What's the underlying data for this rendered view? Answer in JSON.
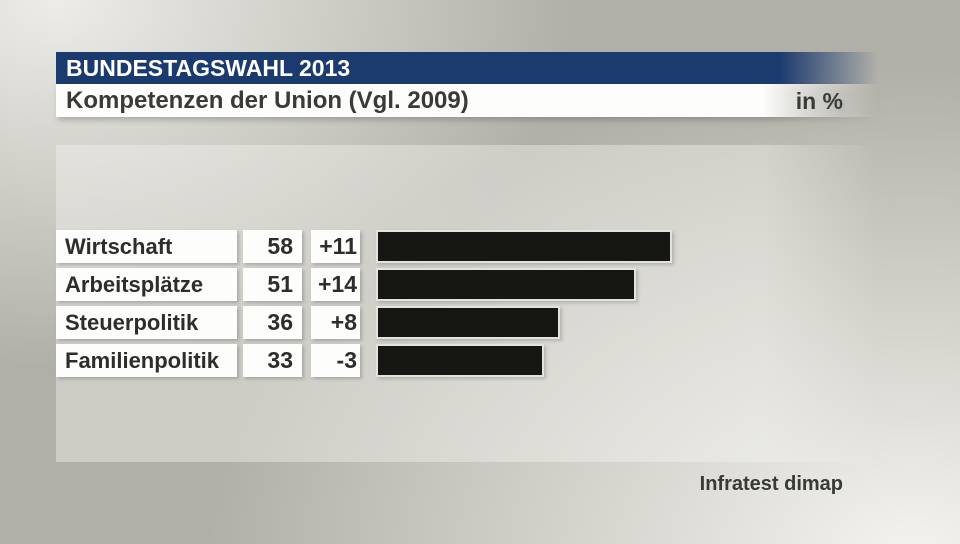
{
  "header": {
    "kicker": "BUNDESTAGSWAHL 2013",
    "title": "Kompetenzen der Union (Vgl. 2009)",
    "unit_label": "in %"
  },
  "source": "Infratest dimap",
  "colors": {
    "header_blue": "#1b3a6e",
    "bar_fill": "#161613",
    "bar_border": "#e3e2dc",
    "text_dark": "#3a3a37",
    "box_white": "#fdfdfc"
  },
  "chart_data": {
    "type": "bar",
    "orientation": "horizontal",
    "title": "Kompetenzen der Union (Vgl. 2009)",
    "unit": "%",
    "categories": [
      "Wirtschaft",
      "Arbeitsplätze",
      "Steuerpolitik",
      "Familienpolitik"
    ],
    "values": [
      58,
      51,
      36,
      33
    ],
    "changes": [
      "+11",
      "+14",
      "+8",
      "-3"
    ],
    "xlim": [
      0,
      100
    ],
    "grid": false,
    "legend": false,
    "source": "Infratest dimap"
  }
}
